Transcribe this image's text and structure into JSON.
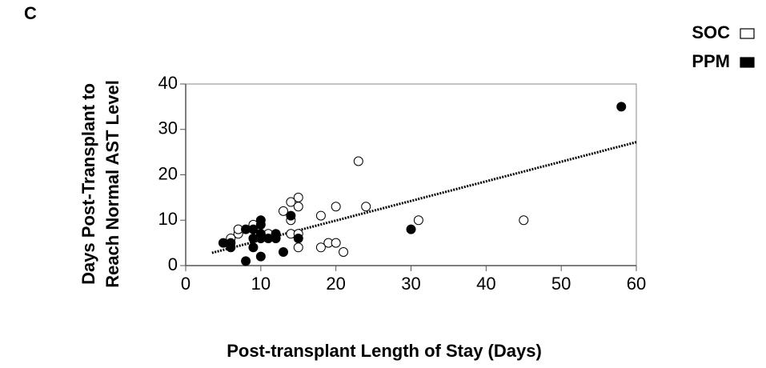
{
  "chart_data": {
    "type": "scatter",
    "panel_label": "C",
    "ylabel": [
      "Days Post-Transplant to",
      "Reach Normal AST Level"
    ],
    "xlabel": "Post-transplant Length of Stay (Days)",
    "xlim": [
      0,
      60
    ],
    "ylim": [
      0,
      40
    ],
    "xticks": [
      0,
      10,
      20,
      30,
      40,
      50,
      60
    ],
    "yticks": [
      0,
      10,
      20,
      30,
      40
    ],
    "series": [
      {
        "name": "SOC",
        "color": "#ffffff",
        "x": [
          23,
          15,
          14,
          15,
          20,
          24,
          13,
          18,
          14,
          31,
          45,
          14,
          15,
          7,
          9,
          19,
          20,
          18,
          15,
          21,
          6,
          11,
          7
        ],
        "values": [
          23,
          15,
          14,
          13,
          13,
          13,
          12,
          11,
          10,
          10,
          10,
          7,
          7,
          7,
          9,
          5,
          5,
          4,
          4,
          3,
          6,
          7,
          8
        ]
      },
      {
        "name": "PPM",
        "color": "#000000",
        "x": [
          58,
          30,
          5,
          6,
          6,
          8,
          9,
          9,
          9,
          8,
          10,
          10,
          10,
          10,
          10,
          11,
          12,
          12,
          13,
          14,
          15
        ],
        "values": [
          35,
          8,
          5,
          5,
          4,
          8,
          8,
          6,
          4,
          1,
          10,
          9,
          7,
          6,
          2,
          6,
          7,
          6,
          3,
          11,
          6
        ]
      }
    ],
    "trendline": {
      "x": [
        3.5,
        60
      ],
      "values": [
        2.8,
        27.2
      ]
    }
  }
}
